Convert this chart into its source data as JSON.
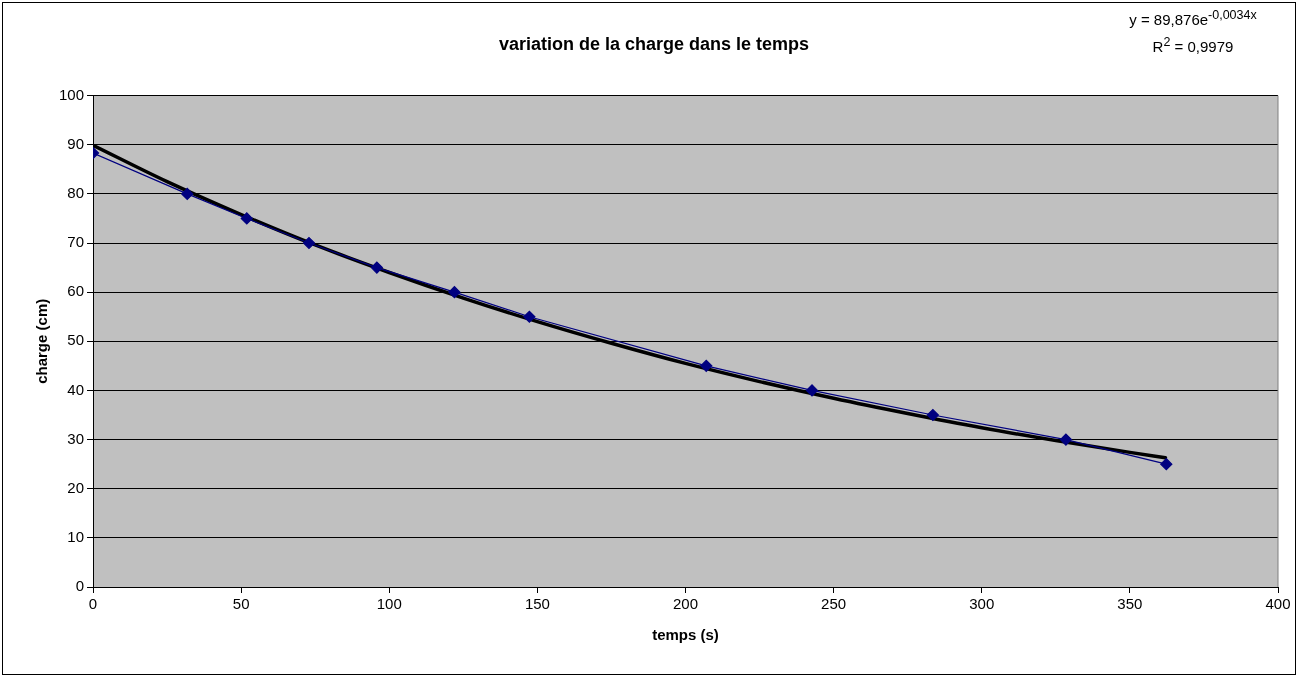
{
  "chart_data": {
    "type": "line",
    "title": "variation de la charge dans le temps",
    "xlabel": "temps (s)",
    "ylabel": "charge (cm)",
    "annotations": [
      "y = 89,876e$^{-0,0034x}$",
      "R$^{2}$ = 0,9979"
    ],
    "xlim": [
      0,
      400
    ],
    "xticks": [
      0,
      50,
      100,
      150,
      200,
      250,
      300,
      350,
      400
    ],
    "ylim": [
      0,
      100
    ],
    "yticks": [
      0,
      10,
      20,
      30,
      40,
      50,
      60,
      70,
      80,
      90,
      100
    ],
    "grid": "y",
    "legend": false,
    "marker": "diamond",
    "series": [
      {
        "color": "#000080",
        "x": [
          0,
          31.8,
          51.9,
          72.9,
          95.8,
          122,
          147.3,
          207,
          242.7,
          283.5,
          328.4,
          362.3
        ],
        "values": [
          88.3,
          80,
          75,
          70,
          65,
          60,
          55,
          45,
          40,
          35,
          30,
          25
        ]
      },
      {
        "color": "#000000",
        "marker": "none",
        "line_style": "solid",
        "x": [
          0,
          25,
          50,
          75,
          100,
          125,
          150,
          175,
          200,
          225,
          250,
          275,
          300,
          325,
          350,
          362
        ],
        "values": [
          89.9,
          82.5,
          75.8,
          69.6,
          64,
          58.8,
          54,
          49.6,
          45.5,
          41.8,
          38.4,
          35.3,
          32.4,
          29.8,
          27.4,
          26.3
        ]
      }
    ]
  }
}
